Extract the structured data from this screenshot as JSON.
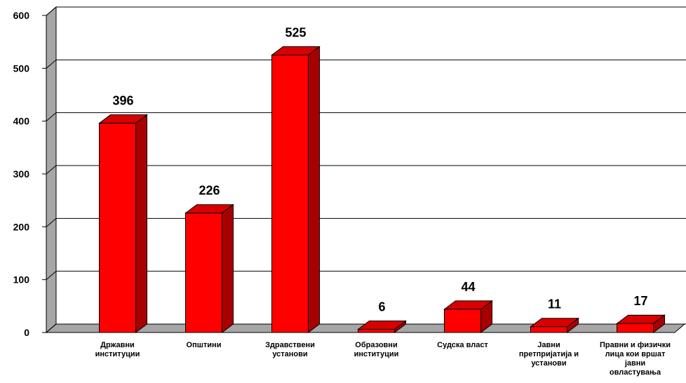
{
  "chart_data": {
    "type": "bar3d",
    "categories": [
      "Државни институции",
      "Општини",
      "Здравствени установи",
      "Образовни институции",
      "Судска власт",
      "Јавни претпријатија и установи",
      "Правни и физички лица кои вршат јавни овластувања"
    ],
    "values": [
      396,
      226,
      525,
      6,
      44,
      11,
      17
    ],
    "color": "#ff0000",
    "ylim": [
      0,
      600
    ],
    "yticks": [
      0,
      100,
      200,
      300,
      400,
      500,
      600
    ],
    "grid": true
  }
}
